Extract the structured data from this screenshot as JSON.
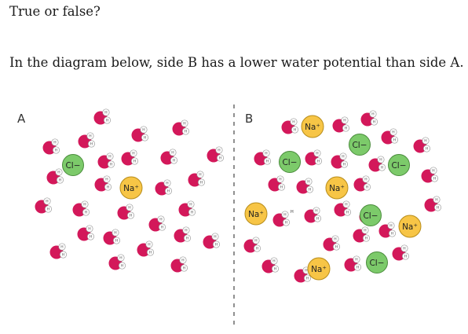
{
  "question": {
    "title": "True or false?",
    "text": "In the diagram below, side B has a lower water potential than side A."
  },
  "diagram": {
    "side_a_label": "A",
    "side_b_label": "B",
    "cl_label": "Cl−",
    "na_label": "Na⁺",
    "h_label": "H",
    "colors": {
      "oxygen": "#d3185a",
      "hydrogen": "#ffffff",
      "chloride": "#7cca6a",
      "sodium": "#f7c546",
      "divider": "#555555"
    }
  }
}
